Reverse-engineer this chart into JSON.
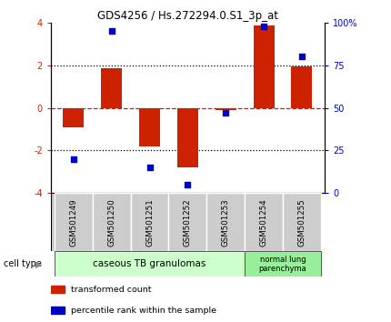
{
  "title": "GDS4256 / Hs.272294.0.S1_3p_at",
  "samples": [
    "GSM501249",
    "GSM501250",
    "GSM501251",
    "GSM501252",
    "GSM501253",
    "GSM501254",
    "GSM501255"
  ],
  "transformed_count": [
    -0.9,
    1.85,
    -1.8,
    -2.8,
    -0.1,
    3.85,
    1.95
  ],
  "percentile_rank": [
    20,
    95,
    15,
    5,
    47,
    98,
    80
  ],
  "bar_color": "#cc2200",
  "dot_color": "#0000cc",
  "ylim_left": [
    -4,
    4
  ],
  "yticks_left": [
    -4,
    -2,
    0,
    2,
    4
  ],
  "ylim_right": [
    0,
    100
  ],
  "ytick_labels_right": [
    "0",
    "25",
    "50",
    "75",
    "100%"
  ],
  "yticks_right": [
    0,
    25,
    50,
    75,
    100
  ],
  "cell_types": [
    {
      "label": "caseous TB granulomas",
      "samples_range": [
        0,
        4
      ],
      "color": "#ccffcc"
    },
    {
      "label": "normal lung\nparenchyma",
      "samples_range": [
        5,
        6
      ],
      "color": "#99ee99"
    }
  ],
  "cell_type_label": "cell type",
  "legend_items": [
    {
      "color": "#cc2200",
      "label": "transformed count"
    },
    {
      "color": "#0000cc",
      "label": "percentile rank within the sample"
    }
  ],
  "sample_label_bg": "#cccccc",
  "sample_label_border": "#888888",
  "background_color": "#ffffff"
}
